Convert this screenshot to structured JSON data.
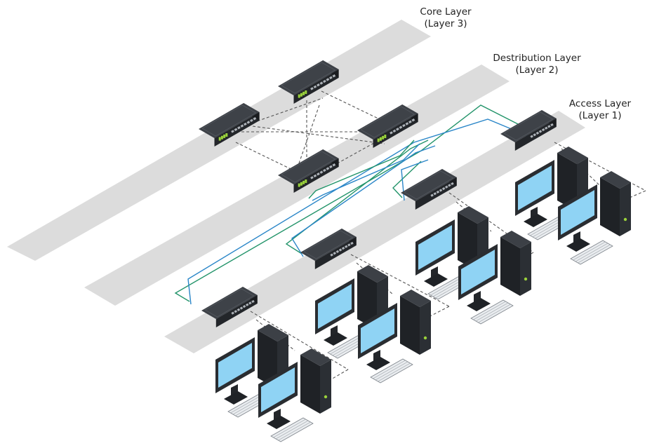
{
  "layers": [
    {
      "id": "core",
      "title": "Core Layer",
      "subtitle": "(Layer 3)"
    },
    {
      "id": "distribution",
      "title": "Destribution Layer",
      "subtitle": "(Layer 2)"
    },
    {
      "id": "access",
      "title": "Access Layer",
      "subtitle": "(Layer 1)"
    }
  ],
  "colors": {
    "layer_band": "#dcdcdc",
    "switch_top": "#3e4248",
    "switch_side": "#23262a",
    "port_light": "#9ad23b",
    "link_core": "#555555",
    "link_green": "#23946a",
    "link_blue": "#2a86c8",
    "monitor_screen": "#8fd3f4",
    "monitor_body": "#2a2d31",
    "keyboard": "#e9ecef"
  },
  "icons": [
    "switch-icon",
    "desktop-computer-icon",
    "keyboard-icon"
  ]
}
